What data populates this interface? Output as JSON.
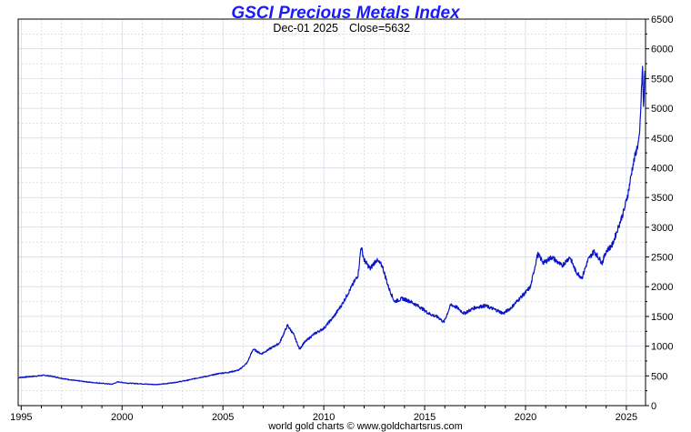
{
  "chart_data": {
    "type": "line",
    "title": "GSCI Precious Metals Index",
    "subtitle": {
      "date": "Dec-01  2025",
      "close": "Close=5632"
    },
    "footer": "world gold charts © www.goldchartsrus.com",
    "xlim": [
      1994.85,
      2025.95
    ],
    "ylim": [
      0,
      6500
    ],
    "x_ticks": [
      1995,
      2000,
      2005,
      2010,
      2015,
      2020,
      2025
    ],
    "y_ticks": [
      0,
      500,
      1000,
      1500,
      2000,
      2500,
      3000,
      3500,
      4000,
      4500,
      5000,
      5500,
      6000,
      6500
    ],
    "grid": true,
    "legend": "none",
    "series": [
      {
        "name": "GSCI Precious Metals Index",
        "x": [
          1994.85,
          1995.5,
          1996.1,
          1996.5,
          1997.0,
          1997.5,
          1998.0,
          1998.5,
          1999.0,
          1999.5,
          1999.8,
          2000.2,
          2000.8,
          2001.3,
          2001.8,
          2002.3,
          2002.8,
          2003.3,
          2003.8,
          2004.3,
          2004.8,
          2005.3,
          2005.8,
          2006.2,
          2006.5,
          2006.9,
          2007.3,
          2007.8,
          2008.2,
          2008.5,
          2008.8,
          2009.0,
          2009.5,
          2010.0,
          2010.5,
          2010.9,
          2011.3,
          2011.7,
          2011.85,
          2012.0,
          2012.3,
          2012.6,
          2012.9,
          2013.2,
          2013.5,
          2013.9,
          2014.3,
          2014.8,
          2015.2,
          2015.7,
          2015.95,
          2016.3,
          2016.6,
          2016.95,
          2017.5,
          2018.0,
          2018.6,
          2018.9,
          2019.3,
          2019.7,
          2020.0,
          2020.25,
          2020.6,
          2020.9,
          2021.3,
          2021.8,
          2022.2,
          2022.5,
          2022.8,
          2023.1,
          2023.4,
          2023.8,
          2024.0,
          2024.3,
          2024.6,
          2024.9,
          2025.1,
          2025.3,
          2025.5,
          2025.65,
          2025.75,
          2025.8,
          2025.85,
          2025.92
        ],
        "values": [
          470,
          490,
          510,
          495,
          460,
          430,
          410,
          390,
          375,
          360,
          400,
          380,
          370,
          360,
          355,
          375,
          400,
          430,
          470,
          500,
          540,
          560,
          600,
          720,
          950,
          870,
          950,
          1050,
          1350,
          1200,
          950,
          1050,
          1200,
          1300,
          1500,
          1700,
          1950,
          2200,
          2680,
          2450,
          2300,
          2450,
          2350,
          2000,
          1750,
          1800,
          1750,
          1650,
          1550,
          1480,
          1400,
          1700,
          1650,
          1550,
          1650,
          1680,
          1600,
          1550,
          1650,
          1800,
          1900,
          2000,
          2550,
          2400,
          2500,
          2350,
          2500,
          2250,
          2150,
          2450,
          2600,
          2400,
          2600,
          2700,
          3000,
          3300,
          3600,
          4000,
          4300,
          4500,
          5300,
          5700,
          5000,
          5632
        ]
      }
    ],
    "colors": {
      "line": "#0a14c8",
      "title": "#1a1aff",
      "grid": "#c9d2dc",
      "axis": "#000000"
    }
  }
}
